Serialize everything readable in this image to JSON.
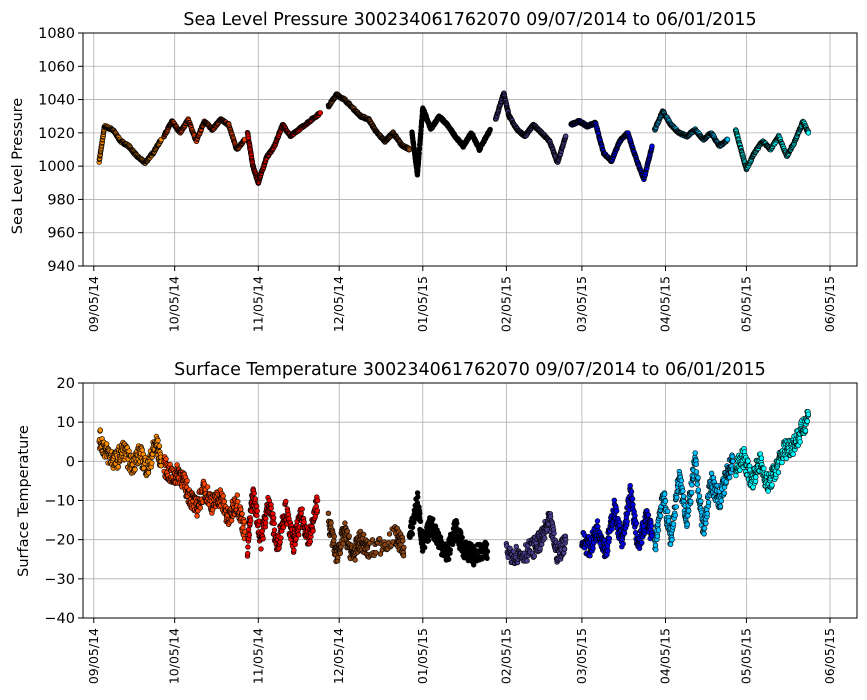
{
  "chart_data": [
    {
      "type": "scatter",
      "title": "Sea Level Pressure 300234061762070  09/07/2014 to 06/01/2015",
      "xlabel": "",
      "ylabel": "Sea Level Pressure",
      "ylim": [
        940,
        1080
      ],
      "yticks": [
        "940",
        "960",
        "980",
        "1000",
        "1020",
        "1040",
        "1060",
        "1080"
      ],
      "x_range": [
        "2014-09-01",
        "2015-06-05"
      ],
      "xticks": [
        {
          "date": "2014-09-05",
          "label": "09/05/14"
        },
        {
          "date": "2014-10-05",
          "label": "10/05/14"
        },
        {
          "date": "2014-11-05",
          "label": "11/05/14"
        },
        {
          "date": "2014-12-05",
          "label": "12/05/14"
        },
        {
          "date": "2015-01-05",
          "label": "01/05/15"
        },
        {
          "date": "2015-02-05",
          "label": "02/05/15"
        },
        {
          "date": "2015-03-05",
          "label": "03/05/15"
        },
        {
          "date": "2015-04-05",
          "label": "04/05/15"
        },
        {
          "date": "2015-05-05",
          "label": "05/05/15"
        },
        {
          "date": "2015-06-05",
          "label": "06/05/15"
        }
      ],
      "grid": true,
      "marker": "filled circle, black edge, colored by month",
      "series": [
        {
          "color": "#ff8c00",
          "x": [
            "2014-09-07",
            "2014-09-09",
            "2014-09-12",
            "2014-09-15",
            "2014-09-18",
            "2014-09-21",
            "2014-09-24",
            "2014-09-27",
            "2014-09-30"
          ],
          "y": [
            1003,
            1024,
            1022,
            1015,
            1012,
            1006,
            1002,
            1008,
            1016
          ]
        },
        {
          "color": "#ff4500",
          "x": [
            "2014-10-01",
            "2014-10-04",
            "2014-10-07",
            "2014-10-10",
            "2014-10-13",
            "2014-10-16",
            "2014-10-19",
            "2014-10-22",
            "2014-10-25",
            "2014-10-28",
            "2014-10-31"
          ],
          "y": [
            1018,
            1027,
            1020,
            1028,
            1015,
            1027,
            1022,
            1028,
            1025,
            1010,
            1016
          ]
        },
        {
          "color": "#ee0000",
          "x": [
            "2014-11-01",
            "2014-11-03",
            "2014-11-05",
            "2014-11-08",
            "2014-11-11",
            "2014-11-14",
            "2014-11-17",
            "2014-11-20",
            "2014-11-24",
            "2014-11-28"
          ],
          "y": [
            1020,
            1000,
            990,
            1005,
            1012,
            1025,
            1018,
            1022,
            1027,
            1032
          ]
        },
        {
          "color": "#8b4513",
          "x": [
            "2014-12-01",
            "2014-12-04",
            "2014-12-07",
            "2014-12-10",
            "2014-12-13",
            "2014-12-16",
            "2014-12-19",
            "2014-12-22",
            "2014-12-25",
            "2014-12-28",
            "2014-12-31"
          ],
          "y": [
            1036,
            1043,
            1040,
            1035,
            1030,
            1028,
            1020,
            1015,
            1020,
            1013,
            1010
          ]
        },
        {
          "color": "#000000",
          "x": [
            "2015-01-01",
            "2015-01-03",
            "2015-01-05",
            "2015-01-08",
            "2015-01-11",
            "2015-01-14",
            "2015-01-17",
            "2015-01-20",
            "2015-01-23",
            "2015-01-26",
            "2015-01-30"
          ],
          "y": [
            1020,
            995,
            1035,
            1022,
            1030,
            1025,
            1018,
            1012,
            1020,
            1010,
            1022
          ]
        },
        {
          "color": "#483d8b",
          "x": [
            "2015-02-01",
            "2015-02-04",
            "2015-02-06",
            "2015-02-09",
            "2015-02-12",
            "2015-02-15",
            "2015-02-18",
            "2015-02-21",
            "2015-02-24",
            "2015-02-27"
          ],
          "y": [
            1028,
            1044,
            1030,
            1022,
            1018,
            1025,
            1020,
            1015,
            1002,
            1018
          ]
        },
        {
          "color": "#0000ee",
          "x": [
            "2015-03-01",
            "2015-03-04",
            "2015-03-07",
            "2015-03-10",
            "2015-03-13",
            "2015-03-16",
            "2015-03-19",
            "2015-03-22",
            "2015-03-25",
            "2015-03-28",
            "2015-03-31"
          ],
          "y": [
            1025,
            1027,
            1024,
            1026,
            1008,
            1003,
            1015,
            1020,
            1005,
            992,
            1012
          ]
        },
        {
          "color": "#00bfff",
          "x": [
            "2015-04-01",
            "2015-04-04",
            "2015-04-07",
            "2015-04-10",
            "2015-04-13",
            "2015-04-16",
            "2015-04-19",
            "2015-04-22",
            "2015-04-25",
            "2015-04-28"
          ],
          "y": [
            1022,
            1033,
            1025,
            1020,
            1018,
            1022,
            1016,
            1020,
            1012,
            1016
          ]
        },
        {
          "color": "#00ffff",
          "x": [
            "2015-05-01",
            "2015-05-03",
            "2015-05-05",
            "2015-05-08",
            "2015-05-11",
            "2015-05-14",
            "2015-05-17",
            "2015-05-20",
            "2015-05-23",
            "2015-05-26",
            "2015-05-28"
          ],
          "y": [
            1022,
            1010,
            998,
            1008,
            1015,
            1010,
            1018,
            1006,
            1015,
            1027,
            1020
          ]
        }
      ]
    },
    {
      "type": "scatter",
      "title": "Surface Temperature 300234061762070  09/07/2014 to 06/01/2015",
      "xlabel": "",
      "ylabel": "Surface Temperature",
      "ylim": [
        -40,
        20
      ],
      "yticks": [
        "−40",
        "−30",
        "−20",
        "−10",
        "0",
        "10",
        "20"
      ],
      "x_range": [
        "2014-09-01",
        "2015-06-05"
      ],
      "xticks": [
        {
          "date": "2014-09-05",
          "label": "09/05/14"
        },
        {
          "date": "2014-10-05",
          "label": "10/05/14"
        },
        {
          "date": "2014-11-05",
          "label": "11/05/14"
        },
        {
          "date": "2014-12-05",
          "label": "12/05/14"
        },
        {
          "date": "2015-01-05",
          "label": "01/05/15"
        },
        {
          "date": "2015-02-05",
          "label": "02/05/15"
        },
        {
          "date": "2015-03-05",
          "label": "03/05/15"
        },
        {
          "date": "2015-04-05",
          "label": "04/05/15"
        },
        {
          "date": "2015-05-05",
          "label": "05/05/15"
        },
        {
          "date": "2015-06-05",
          "label": "06/05/15"
        }
      ],
      "grid": true,
      "marker": "filled circle, black edge, colored by month",
      "series": [
        {
          "color": "#ff8c00",
          "x": [
            "2014-09-07",
            "2014-09-10",
            "2014-09-13",
            "2014-09-16",
            "2014-09-19",
            "2014-09-22",
            "2014-09-25",
            "2014-09-28",
            "2014-09-30"
          ],
          "y": [
            6,
            2,
            0,
            3,
            -1,
            2,
            -2,
            5,
            0
          ]
        },
        {
          "color": "#ff4500",
          "x": [
            "2014-10-01",
            "2014-10-04",
            "2014-10-07",
            "2014-10-10",
            "2014-10-13",
            "2014-10-16",
            "2014-10-19",
            "2014-10-22",
            "2014-10-25",
            "2014-10-28",
            "2014-10-31"
          ],
          "y": [
            -1,
            -4,
            -3,
            -8,
            -12,
            -7,
            -11,
            -9,
            -15,
            -10,
            -18
          ]
        },
        {
          "color": "#ee0000",
          "x": [
            "2014-11-01",
            "2014-11-03",
            "2014-11-06",
            "2014-11-09",
            "2014-11-12",
            "2014-11-15",
            "2014-11-18",
            "2014-11-21",
            "2014-11-24",
            "2014-11-27"
          ],
          "y": [
            -22,
            -8,
            -20,
            -10,
            -22,
            -12,
            -21,
            -14,
            -20,
            -10
          ]
        },
        {
          "color": "#8b4513",
          "x": [
            "2014-12-01",
            "2014-12-04",
            "2014-12-07",
            "2014-12-10",
            "2014-12-13",
            "2014-12-16",
            "2014-12-26",
            "2014-12-29"
          ],
          "y": [
            -15,
            -24,
            -18,
            -24,
            -20,
            -23,
            -19,
            -22
          ]
        },
        {
          "color": "#000000",
          "x": [
            "2014-12-31",
            "2015-01-03",
            "2015-01-05",
            "2015-01-08",
            "2015-01-11",
            "2015-01-14",
            "2015-01-17",
            "2015-01-20",
            "2015-01-24",
            "2015-01-29"
          ],
          "y": [
            -20,
            -10,
            -22,
            -16,
            -20,
            -24,
            -17,
            -22,
            -24,
            -23
          ]
        },
        {
          "color": "#483d8b",
          "x": [
            "2015-02-05",
            "2015-02-10",
            "2015-02-15",
            "2015-02-18",
            "2015-02-21",
            "2015-02-24",
            "2015-02-27"
          ],
          "y": [
            -23,
            -24,
            -22,
            -20,
            -15,
            -24,
            -20
          ]
        },
        {
          "color": "#0000ee",
          "x": [
            "2015-03-05",
            "2015-03-08",
            "2015-03-11",
            "2015-03-14",
            "2015-03-17",
            "2015-03-20",
            "2015-03-23",
            "2015-03-26",
            "2015-03-29",
            "2015-03-31"
          ],
          "y": [
            -20,
            -22,
            -17,
            -23,
            -12,
            -21,
            -8,
            -22,
            -14,
            -19
          ]
        },
        {
          "color": "#00bfff",
          "x": [
            "2015-04-01",
            "2015-04-04",
            "2015-04-07",
            "2015-04-10",
            "2015-04-13",
            "2015-04-16",
            "2015-04-19",
            "2015-04-22",
            "2015-04-25",
            "2015-04-28",
            "2015-04-30"
          ],
          "y": [
            -22,
            -8,
            -20,
            -4,
            -15,
            0,
            -18,
            -5,
            -10,
            -3,
            0
          ]
        },
        {
          "color": "#00ffff",
          "x": [
            "2015-05-01",
            "2015-05-04",
            "2015-05-07",
            "2015-05-10",
            "2015-05-13",
            "2015-05-16",
            "2015-05-19",
            "2015-05-22",
            "2015-05-25",
            "2015-05-28"
          ],
          "y": [
            -2,
            1,
            -5,
            0,
            -6,
            -2,
            3,
            4,
            7,
            12
          ]
        }
      ]
    }
  ]
}
